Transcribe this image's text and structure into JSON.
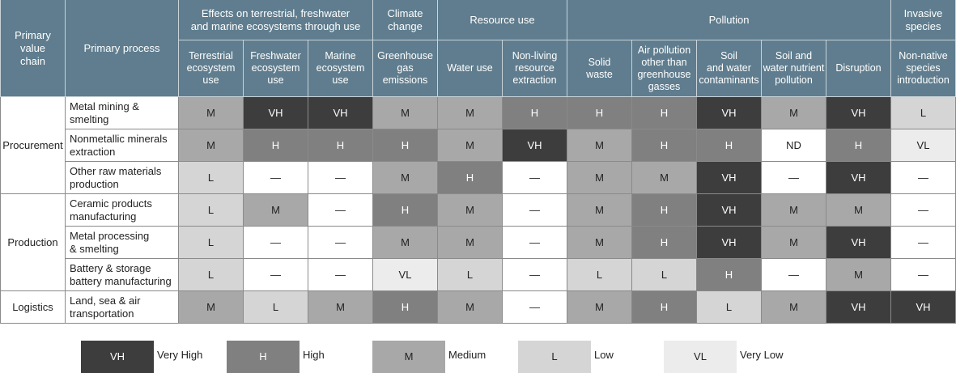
{
  "header": {
    "chain": "Primary\nvalue\nchain",
    "process": "Primary process",
    "groups": [
      {
        "label": "Effects on terrestrial, freshwater\nand marine ecosystems through use",
        "columns": [
          "Terrestrial\necosystem\nuse",
          "Freshwater\necosystem\nuse",
          "Marine\necosystem\nuse"
        ]
      },
      {
        "label": "Climate\nchange",
        "columns": [
          "Greenhouse\ngas\nemissions"
        ]
      },
      {
        "label": "Resource use",
        "columns": [
          "Water use",
          "Non-living\nresource\nextraction"
        ]
      },
      {
        "label": "Pollution",
        "columns": [
          "Solid\nwaste",
          "Air pollution\nother than\ngreenhouse\ngasses",
          "Soil\nand water\ncontaminants",
          "Soil and\nwater nutrient\npollution",
          "Disruption"
        ]
      },
      {
        "label": "Invasive\nspecies",
        "columns": [
          "Non-native\nspecies\nintroduction"
        ]
      }
    ]
  },
  "groups": [
    {
      "name": "Procurement",
      "rows": [
        {
          "process": "Metal mining &\nsmelting",
          "ratings": [
            "M",
            "VH",
            "VH",
            "M",
            "M",
            "H",
            "H",
            "H",
            "VH",
            "M",
            "VH",
            "L"
          ]
        },
        {
          "process": "Nonmetallic minerals\nextraction",
          "ratings": [
            "M",
            "H",
            "H",
            "H",
            "M",
            "VH",
            "M",
            "H",
            "H",
            "ND",
            "H",
            "VL"
          ]
        },
        {
          "process": "Other raw materials\nproduction",
          "ratings": [
            "L",
            "—",
            "—",
            "M",
            "H",
            "—",
            "M",
            "M",
            "VH",
            "—",
            "VH",
            "—"
          ]
        }
      ]
    },
    {
      "name": "Production",
      "rows": [
        {
          "process": "Ceramic products\nmanufacturing",
          "ratings": [
            "L",
            "M",
            "—",
            "H",
            "M",
            "—",
            "M",
            "H",
            "VH",
            "M",
            "M",
            "—"
          ]
        },
        {
          "process": "Metal processing\n& smelting",
          "ratings": [
            "L",
            "—",
            "—",
            "M",
            "M",
            "—",
            "M",
            "H",
            "VH",
            "M",
            "VH",
            "—"
          ]
        },
        {
          "process": "Battery & storage\nbattery manufacturing",
          "ratings": [
            "L",
            "—",
            "—",
            "VL",
            "L",
            "—",
            "L",
            "L",
            "H",
            "—",
            "M",
            "—"
          ]
        }
      ]
    },
    {
      "name": "Logistics",
      "rows": [
        {
          "process": "Land, sea & air\ntransportation",
          "ratings": [
            "M",
            "L",
            "M",
            "H",
            "M",
            "—",
            "M",
            "H",
            "L",
            "M",
            "VH",
            "VH"
          ]
        }
      ]
    }
  ],
  "legend": [
    {
      "code": "VH",
      "label": "Very High",
      "color": "#3d3d3d",
      "text_color": "#ffffff"
    },
    {
      "code": "H",
      "label": "High",
      "color": "#808080",
      "text_color": "#ffffff"
    },
    {
      "code": "M",
      "label": "Medium",
      "color": "#a8a8a8",
      "text_color": "#222222"
    },
    {
      "code": "L",
      "label": "Low",
      "color": "#d5d5d5",
      "text_color": "#222222"
    },
    {
      "code": "VL",
      "label": "Very Low",
      "color": "#ececec",
      "text_color": "#222222"
    }
  ]
}
